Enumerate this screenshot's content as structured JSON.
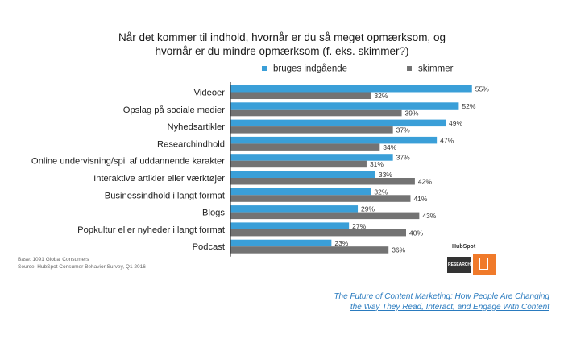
{
  "title_lines": [
    "Når det kommer til indhold, hvornår er du så meget opmærksom, og",
    "hvornår er du mindre opmærksom (f. eks. skimmer?)"
  ],
  "source_lines": [
    "Base: 1091 Global Consumers",
    "Source: HubSpot Consumer Behavior Survey, Q1 2016"
  ],
  "logo": {
    "brand_text": "HubSpot",
    "badge_text": "RESEARCH"
  },
  "report_link": [
    "The Future of Content Marketing: How People Are Changing",
    "the Way They Read, Interact, and Engage With Content"
  ],
  "colors": {
    "series1": "#3a9fd8",
    "series2": "#737373",
    "axis": "#333333"
  },
  "chart_data": {
    "type": "bar",
    "orientation": "horizontal",
    "title": "Når det kommer til indhold, hvornår er du så meget opmærksom, og hvornår er du mindre opmærksom (f. eks. skimmer?)",
    "categories": [
      "Videoer",
      "Opslag på sociale medier",
      "Nyhedsartikler",
      "Researchindhold",
      "Online undervisning/spil af uddannende karakter",
      "Interaktive artikler eller værktøjer",
      "Businessindhold i langt format",
      "Blogs",
      "Popkultur eller nyheder i langt format",
      "Podcast"
    ],
    "series": [
      {
        "name": "bruges indgående",
        "values": [
          55,
          52,
          49,
          47,
          37,
          33,
          32,
          29,
          27,
          23
        ],
        "labels": [
          "55%",
          "52%",
          "49%",
          "47%",
          "37%",
          "33%",
          "32%",
          "29%",
          "27%",
          "23%"
        ]
      },
      {
        "name": "skimmer",
        "values": [
          32,
          39,
          37,
          34,
          31,
          42,
          41,
          43,
          40,
          36
        ],
        "labels": [
          "32%",
          "39%",
          "37%",
          "34%",
          "31%",
          "42%",
          "41%",
          "43%",
          "40%",
          "36%"
        ]
      }
    ],
    "xlim": [
      0,
      55
    ],
    "legend_position": "top",
    "grid": false
  }
}
